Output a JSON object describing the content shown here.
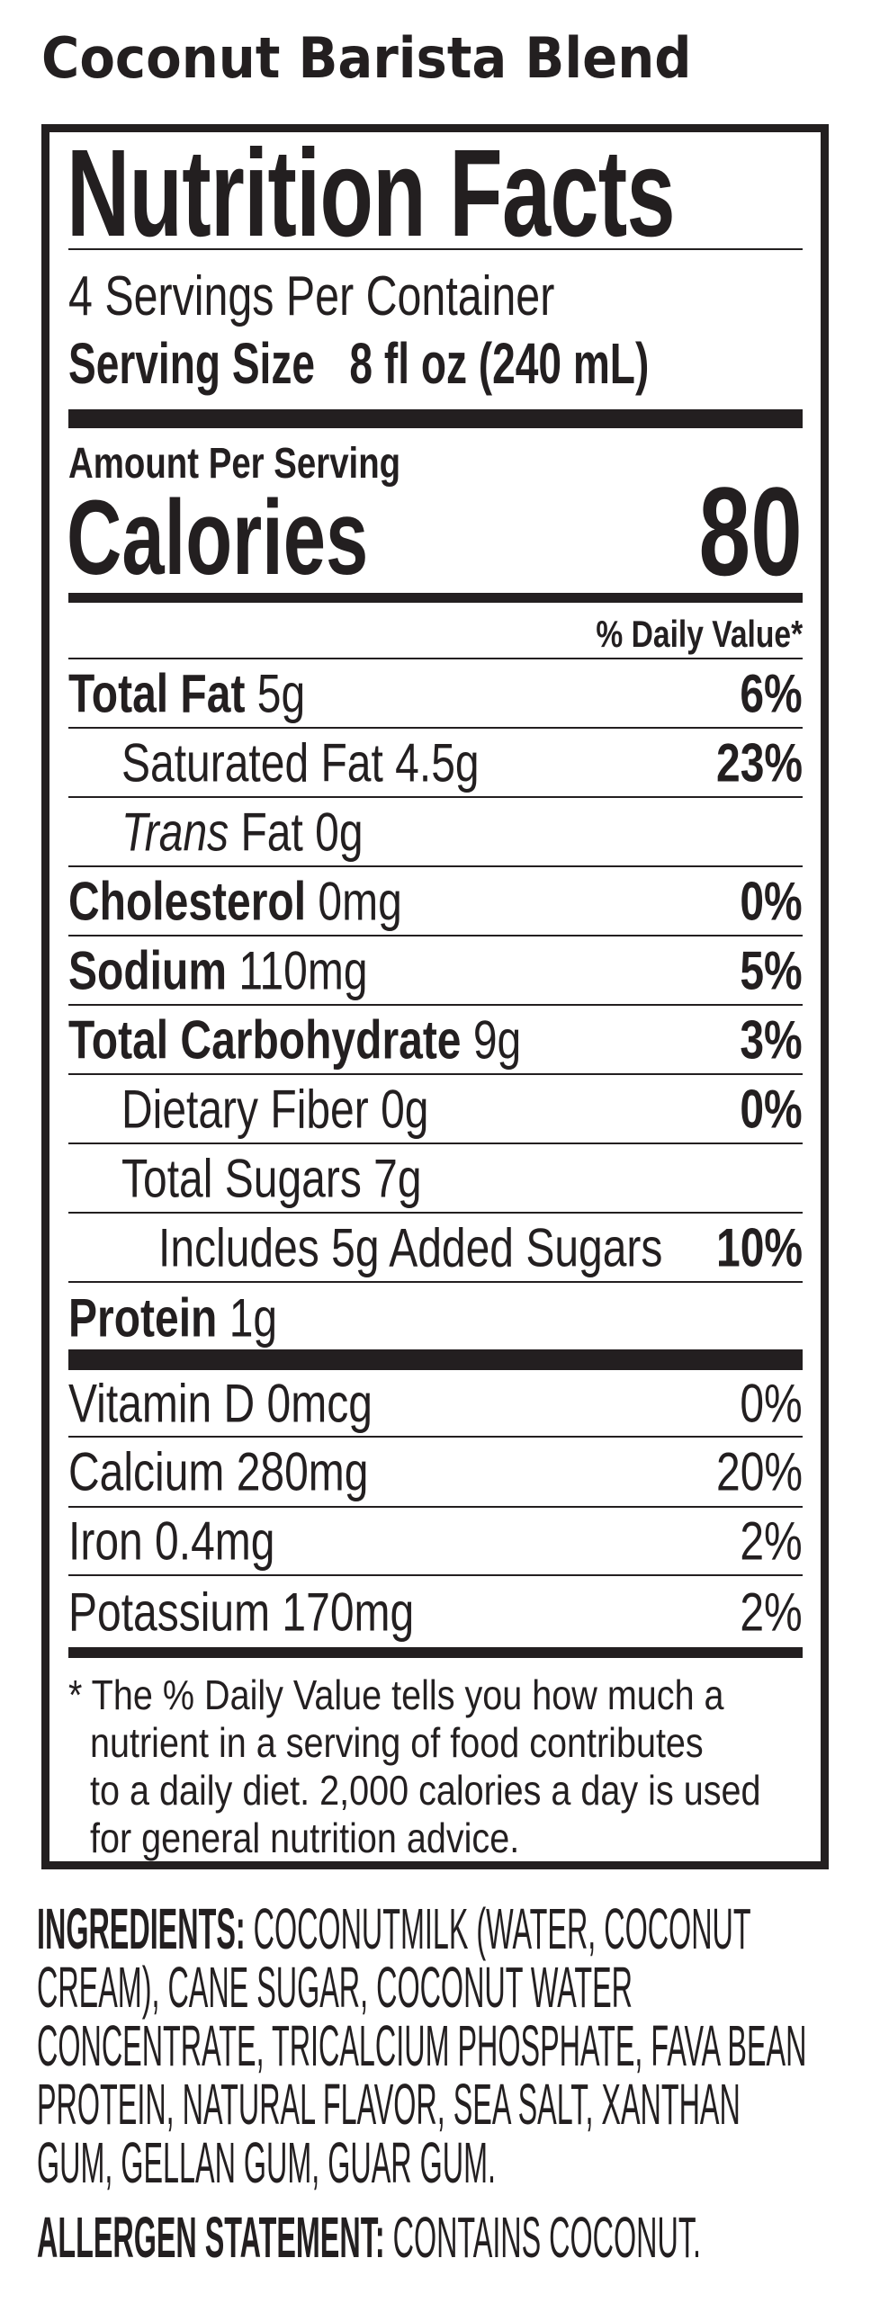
{
  "product_title": "Coconut Barista Blend",
  "label": {
    "title": "Nutrition Facts",
    "servings_per_container": "4 Servings Per Container",
    "serving_size_label": "Serving Size",
    "serving_size_value": "8 fl oz (240 mL)",
    "amount_per_serving": "Amount Per Serving",
    "calories_label": "Calories",
    "calories_value": "80",
    "daily_value_header": "% Daily Value*",
    "nutrients": [
      {
        "name": "Total Fat",
        "amount": "5g",
        "dv": "6%",
        "bold": true,
        "indent": 0
      },
      {
        "name": "Saturated Fat",
        "amount": "4.5g",
        "dv": "23%",
        "bold": false,
        "indent": 1
      },
      {
        "name": "Trans",
        "name_suffix": "Fat",
        "amount": "0g",
        "dv": "",
        "bold": false,
        "italic_name": true,
        "indent": 1
      },
      {
        "name": "Cholesterol",
        "amount": "0mg",
        "dv": "0%",
        "bold": true,
        "indent": 0
      },
      {
        "name": "Sodium",
        "amount": "110mg",
        "dv": "5%",
        "bold": true,
        "indent": 0
      },
      {
        "name": "Total Carbohydrate",
        "amount": "9g",
        "dv": "3%",
        "bold": true,
        "indent": 0
      },
      {
        "name": "Dietary Fiber",
        "amount": "0g",
        "dv": "0%",
        "bold": false,
        "indent": 1
      },
      {
        "name": "Total Sugars",
        "amount": "7g",
        "dv": "",
        "bold": false,
        "indent": 1
      },
      {
        "name": "Includes 5g Added Sugars",
        "amount": "",
        "dv": "10%",
        "bold": false,
        "indent": 2
      },
      {
        "name": "Protein",
        "amount": "1g",
        "dv": "",
        "bold": true,
        "indent": 0
      }
    ],
    "micronutrients": [
      {
        "name": "Vitamin D",
        "amount": "0mcg",
        "dv": "0%"
      },
      {
        "name": "Calcium",
        "amount": "280mg",
        "dv": "20%"
      },
      {
        "name": "Iron",
        "amount": "0.4mg",
        "dv": "2%"
      },
      {
        "name": "Potassium",
        "amount": "170mg",
        "dv": "2%"
      }
    ],
    "footnote_lines": [
      "* The % Daily Value tells you how much a",
      "nutrient in a serving of food contributes",
      "to a daily diet. 2,000 calories a day is used",
      "for general nutrition advice."
    ]
  },
  "ingredients": {
    "label": "INGREDIENTS:",
    "lines": [
      "COCONUTMILK (WATER, COCONUT",
      "CREAM), CANE SUGAR, COCONUT WATER",
      "CONCENTRATE, TRICALCIUM PHOSPHATE, FAVA BEAN",
      "PROTEIN, NATURAL FLAVOR, SEA SALT, XANTHAN",
      "GUM, GELLAN GUM, GUAR GUM."
    ]
  },
  "allergen": {
    "label": "ALLERGEN STATEMENT:",
    "text": "CONTAINS COCONUT."
  }
}
